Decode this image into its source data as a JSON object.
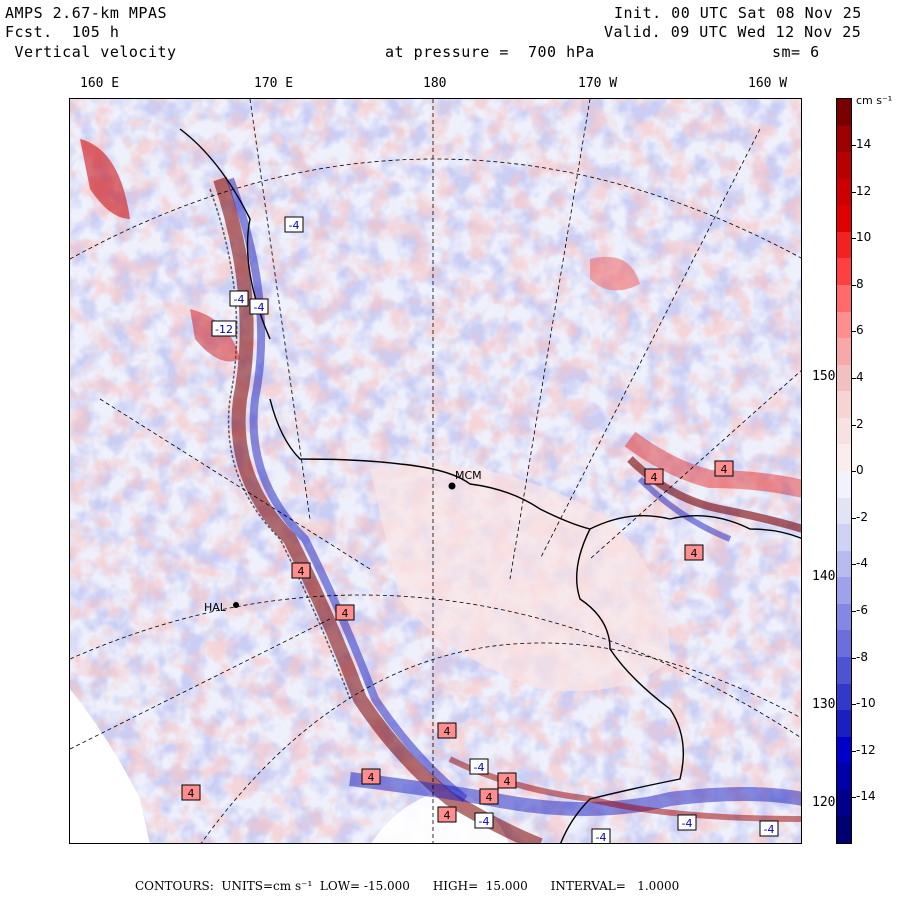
{
  "header": {
    "model": "AMPS 2.67-km MPAS",
    "forecast": "Fcst.  105 h",
    "field": " Vertical velocity",
    "init": "Init. 00 UTC Sat 08 Nov 25",
    "valid": "Valid. 09 UTC Wed 12 Nov 25",
    "pressure": "at pressure =  700 hPa",
    "smoothing": "sm= 6"
  },
  "longitude_labels": [
    "160 E",
    "170 E",
    "180",
    "170 W",
    "160 W"
  ],
  "latitude_labels": [
    "150 W",
    "140 W",
    "130 W",
    "120 W"
  ],
  "station_labels": [
    "MCM",
    "HAL"
  ],
  "colorbar": {
    "units": "cm s⁻¹",
    "ticks": [
      "14",
      "12",
      "10",
      "8",
      "6",
      "4",
      "2",
      "0",
      "-2",
      "-4",
      "-6",
      "-8",
      "-10",
      "-12",
      "-14"
    ],
    "colors_top_to_bottom": [
      "#7a0000",
      "#9c0000",
      "#b80000",
      "#cc0000",
      "#e00000",
      "#f52020",
      "#ff4040",
      "#ff6a6a",
      "#ff8e8e",
      "#f7a9a9",
      "#f2c0c0",
      "#f7d3d3",
      "#f8e1e1",
      "#fbeded",
      "#f2f2fc",
      "#e3e3f8",
      "#cfd2f5",
      "#b7bbf0",
      "#9ea2ea",
      "#8288e3",
      "#6b6fdc",
      "#4d53d2",
      "#3238c8",
      "#1a20c0",
      "#0000c8",
      "#0000a8",
      "#00008a",
      "#000070"
    ]
  },
  "footer": {
    "text": "CONTOURS:  UNITS=cm s⁻¹  LOW= -15.000      HIGH=  15.000      INTERVAL=   1.0000"
  },
  "map": {
    "extremum_markers": [
      "-4",
      "-4",
      "-12",
      "4",
      "4",
      "4",
      "4",
      "4",
      "4",
      "4",
      "4",
      "-4",
      "4",
      "4",
      "-4",
      "-4",
      "-4",
      "-4",
      "4",
      "-4"
    ]
  }
}
